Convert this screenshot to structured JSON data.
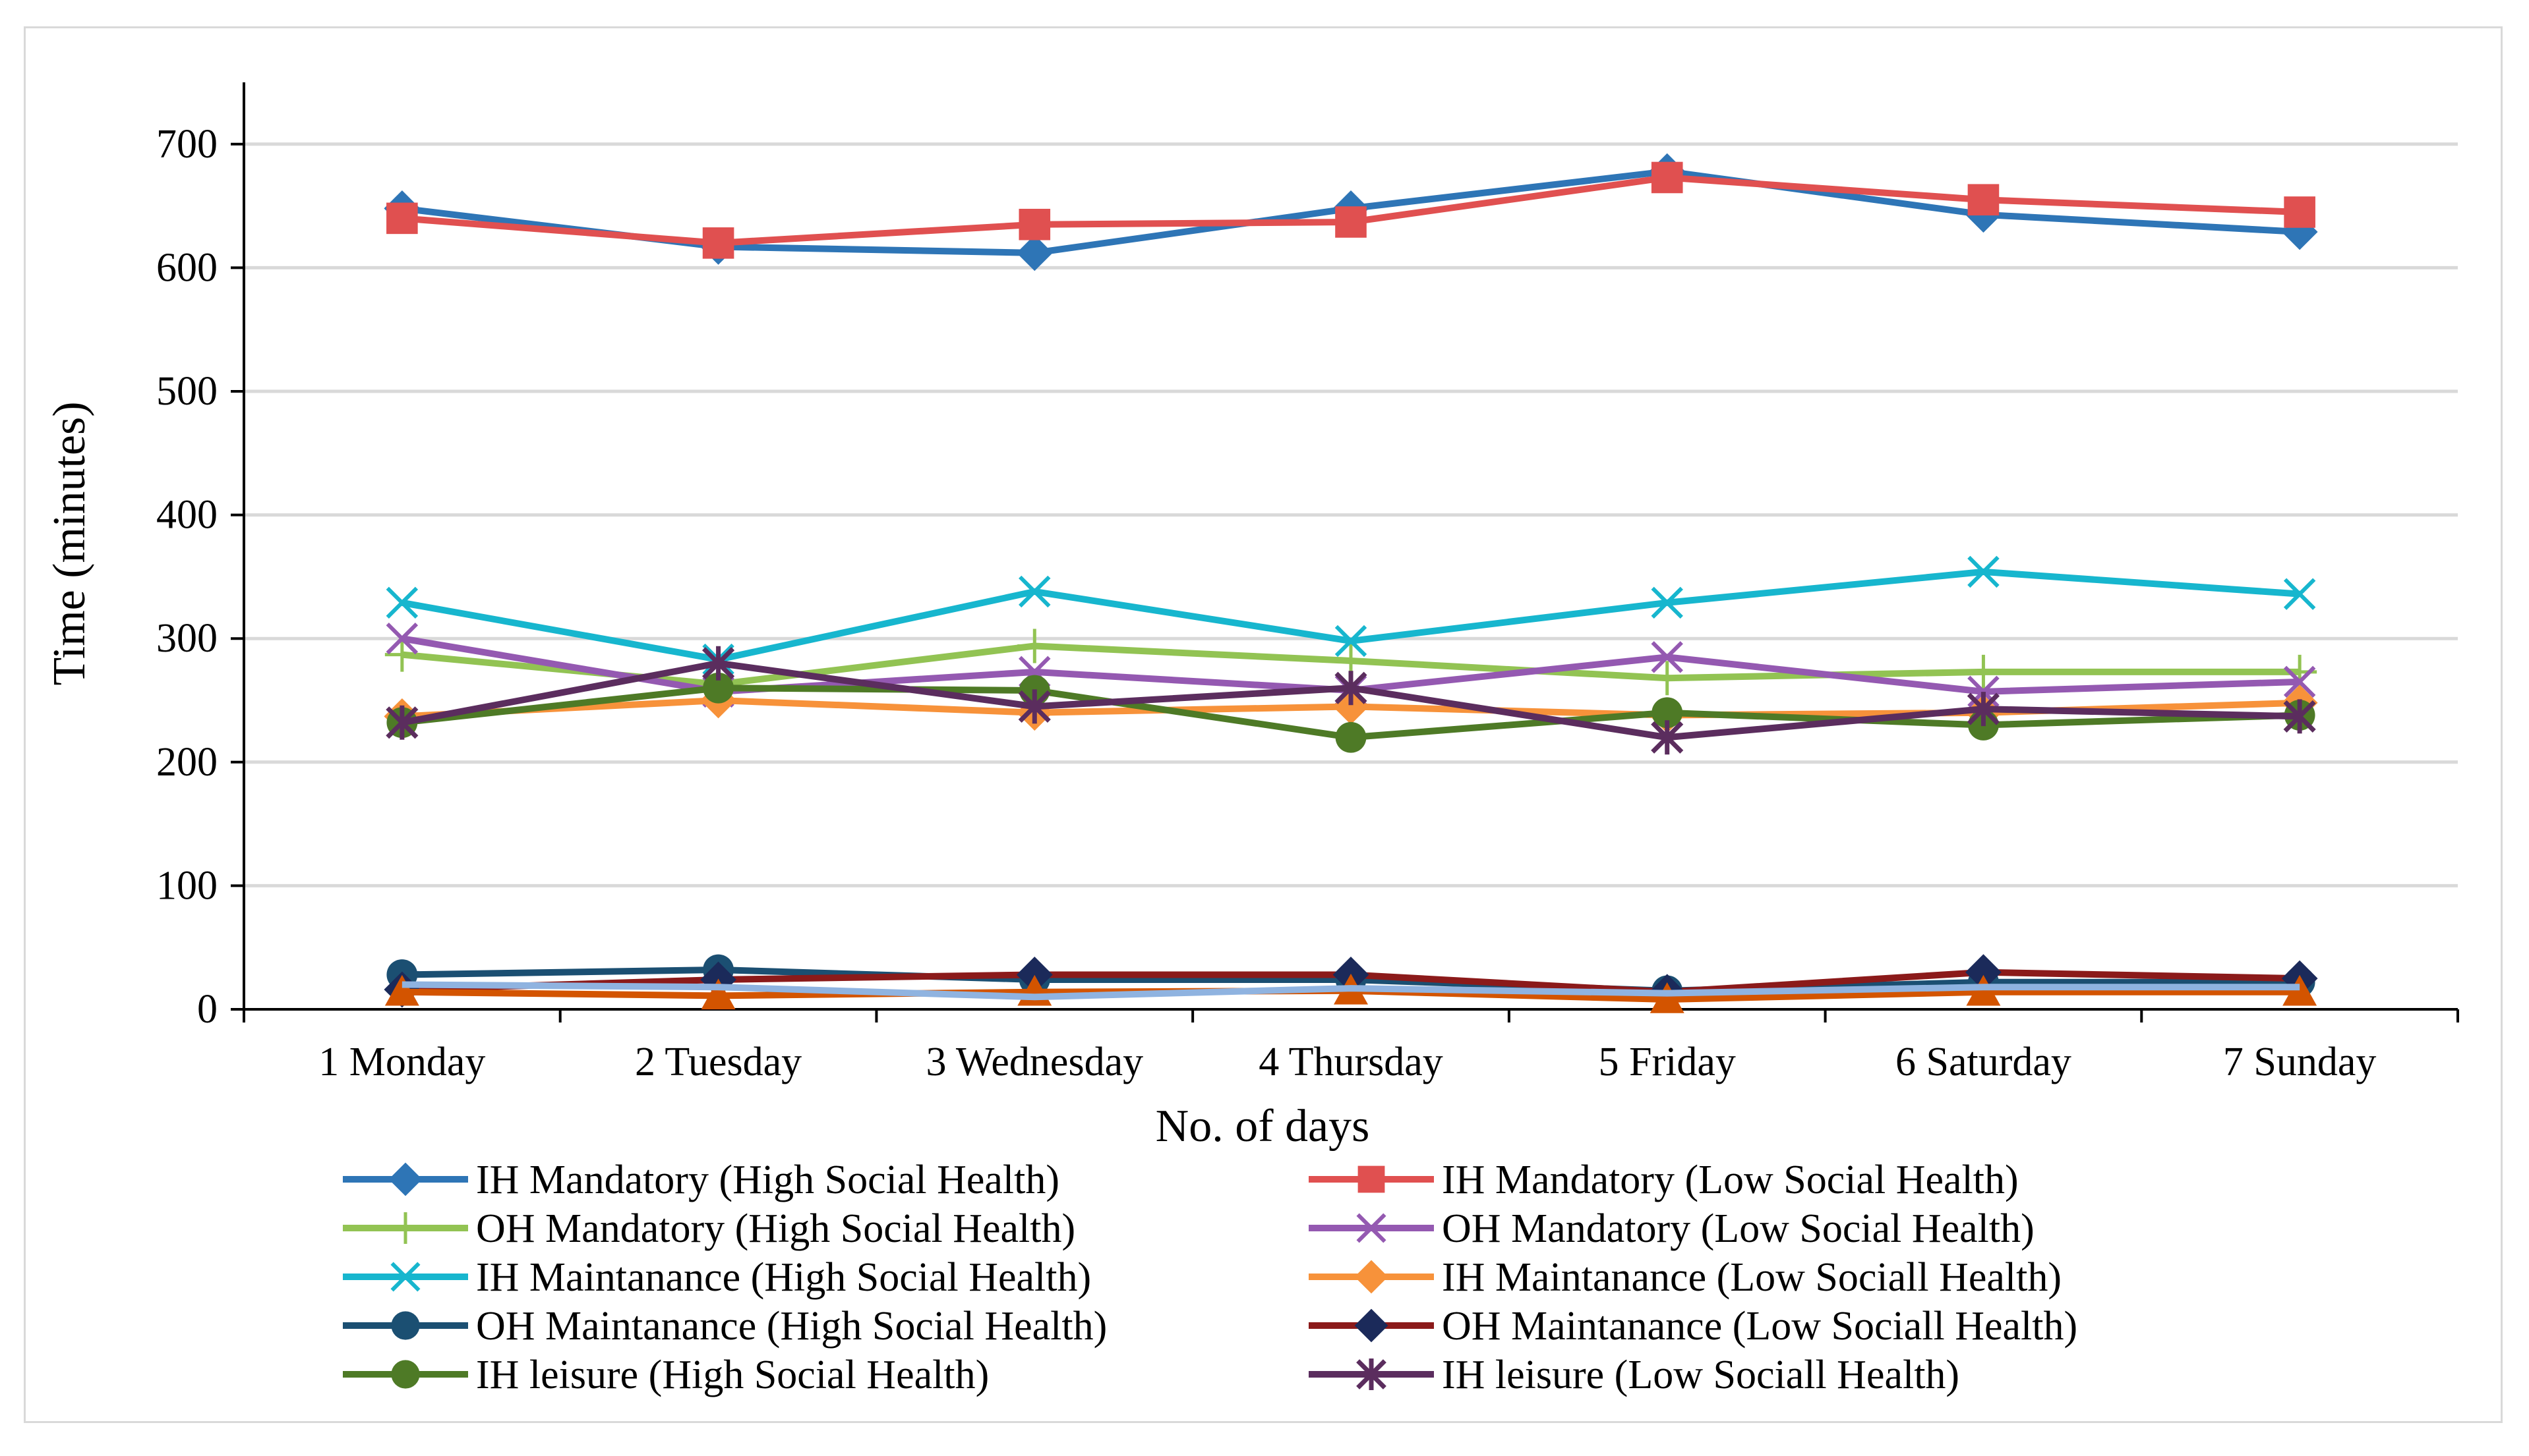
{
  "chart_data": {
    "type": "line",
    "title": "",
    "xlabel": "No. of days",
    "ylabel": "Time (minutes)",
    "ylim": [
      0,
      750
    ],
    "yticks": [
      0,
      100,
      200,
      300,
      400,
      500,
      600,
      700
    ],
    "grid": "horizontal",
    "legend_position": "bottom",
    "categories": [
      "1 Monday",
      "2 Tuesday",
      "3 Wednesday",
      "4 Thursday",
      "5 Friday",
      "6 Saturday",
      "7 Sunday"
    ],
    "series": [
      {
        "name": "IH Mandatory (High Social Health)",
        "color": "#2e75b6",
        "marker": "diamond",
        "values": [
          648,
          617,
          612,
          648,
          678,
          643,
          629
        ]
      },
      {
        "name": "IH Mandatory (Low Social Health)",
        "color": "#e05050",
        "marker": "square",
        "values": [
          640,
          620,
          635,
          637,
          673,
          655,
          645
        ]
      },
      {
        "name": "OH Mandatory (High Social Health)",
        "color": "#92c353",
        "marker": "plus",
        "values": [
          287,
          263,
          294,
          282,
          268,
          273,
          273
        ]
      },
      {
        "name": "OH Mandatory (Low Social Health)",
        "color": "#9459b1",
        "marker": "x",
        "values": [
          300,
          257,
          273,
          258,
          285,
          257,
          265
        ]
      },
      {
        "name": "IH Maintanance (High Social Health)",
        "color": "#17b6ce",
        "marker": "x",
        "values": [
          329,
          283,
          338,
          298,
          329,
          354,
          336
        ]
      },
      {
        "name": "IH Maintanance (Low Sociall Health)",
        "color": "#f7923a",
        "marker": "diamond",
        "values": [
          237,
          250,
          240,
          245,
          238,
          240,
          248
        ]
      },
      {
        "name": "OH Maintanance (High Social Health)",
        "color": "#1b4f72",
        "marker": "circle",
        "values": [
          28,
          32,
          24,
          24,
          15,
          22,
          22
        ]
      },
      {
        "name": "OH Maintanance (Low Sociall Health)",
        "color": "#8b1a1a",
        "marker": "diamond-dark",
        "values": [
          16,
          24,
          28,
          28,
          14,
          30,
          25
        ]
      },
      {
        "name": "IH leisure (High Social Health)",
        "color": "#4e7a26",
        "marker": "circle",
        "values": [
          232,
          260,
          258,
          220,
          240,
          230,
          238
        ]
      },
      {
        "name": "IH leisure (Low Sociall Health)",
        "color": "#5b2d5e",
        "marker": "asterisk",
        "values": [
          232,
          280,
          245,
          260,
          220,
          243,
          237
        ]
      },
      {
        "name": "",
        "color": "#d35400",
        "marker": "triangle",
        "values": [
          14,
          11,
          14,
          15,
          8,
          14,
          14
        ]
      },
      {
        "name": "",
        "color": "#8fb3e0",
        "marker": "none",
        "values": [
          20,
          18,
          10,
          17,
          13,
          18,
          18
        ]
      }
    ]
  }
}
